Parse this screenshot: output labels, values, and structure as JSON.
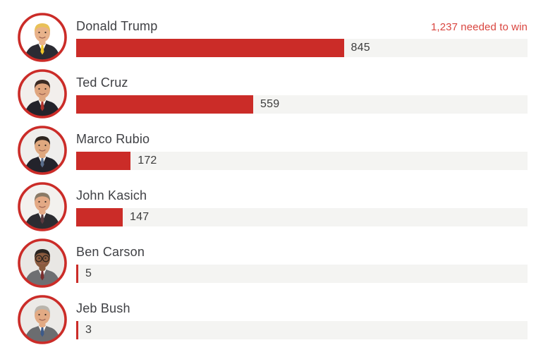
{
  "header": {
    "annotation": "1,237 needed to win"
  },
  "colors": {
    "bar_red": "#cb2c28",
    "track_gray": "#f4f4f2",
    "annotation_red": "#d9453f",
    "name_text": "#3f4044",
    "value_text": "#3c3c3c",
    "avatar_ring": "#cb2c28",
    "background": "#ffffff"
  },
  "chart_data": {
    "type": "bar",
    "orientation": "horizontal",
    "categories": [
      "Donald Trump",
      "Ted Cruz",
      "Marco Rubio",
      "John Kasich",
      "Ben Carson",
      "Jeb Bush"
    ],
    "values": [
      845,
      559,
      172,
      147,
      5,
      3
    ],
    "value_labels": [
      "845",
      "559",
      "172",
      "147",
      "5",
      "3"
    ],
    "annotation": "1,237 needed to win",
    "needed_to_win": 1237,
    "xlim": [
      0,
      1425
    ],
    "grid": false,
    "legend": false,
    "title": ""
  },
  "rows": [
    {
      "name": "Donald Trump",
      "value": 845,
      "value_label": "845",
      "avatar": {
        "bg": "#ffffff",
        "skin": "#e8b28a",
        "hair": "#e9c158",
        "suit": "#2b2b33",
        "tie": "#f0c429",
        "glasses": false
      }
    },
    {
      "name": "Ted Cruz",
      "value": 559,
      "value_label": "559",
      "avatar": {
        "bg": "#f2efec",
        "skin": "#dfa57e",
        "hair": "#3b2a23",
        "suit": "#23232b",
        "tie": "#b0312c",
        "glasses": false
      }
    },
    {
      "name": "Marco Rubio",
      "value": 172,
      "value_label": "172",
      "avatar": {
        "bg": "#efeeec",
        "skin": "#dfa87f",
        "hair": "#2e2620",
        "suit": "#23232b",
        "tie": "#5a6e8c",
        "glasses": false
      }
    },
    {
      "name": "John Kasich",
      "value": 147,
      "value_label": "147",
      "avatar": {
        "bg": "#f3f1ee",
        "skin": "#e3a985",
        "hair": "#8a7a66",
        "suit": "#2c2c31",
        "tie": "#5b3a3f",
        "glasses": false
      }
    },
    {
      "name": "Ben Carson",
      "value": 5,
      "value_label": "5",
      "avatar": {
        "bg": "#e9e7e4",
        "skin": "#8a5b3f",
        "hair": "#2a2420",
        "suit": "#6e6f72",
        "tie": "#7a2e2e",
        "glasses": true
      }
    },
    {
      "name": "Jeb Bush",
      "value": 3,
      "value_label": "3",
      "avatar": {
        "bg": "#eceae7",
        "skin": "#e2aa84",
        "hair": "#b9b4ac",
        "suit": "#6b6d70",
        "tie": "#3c5a8a",
        "glasses": false
      }
    }
  ]
}
